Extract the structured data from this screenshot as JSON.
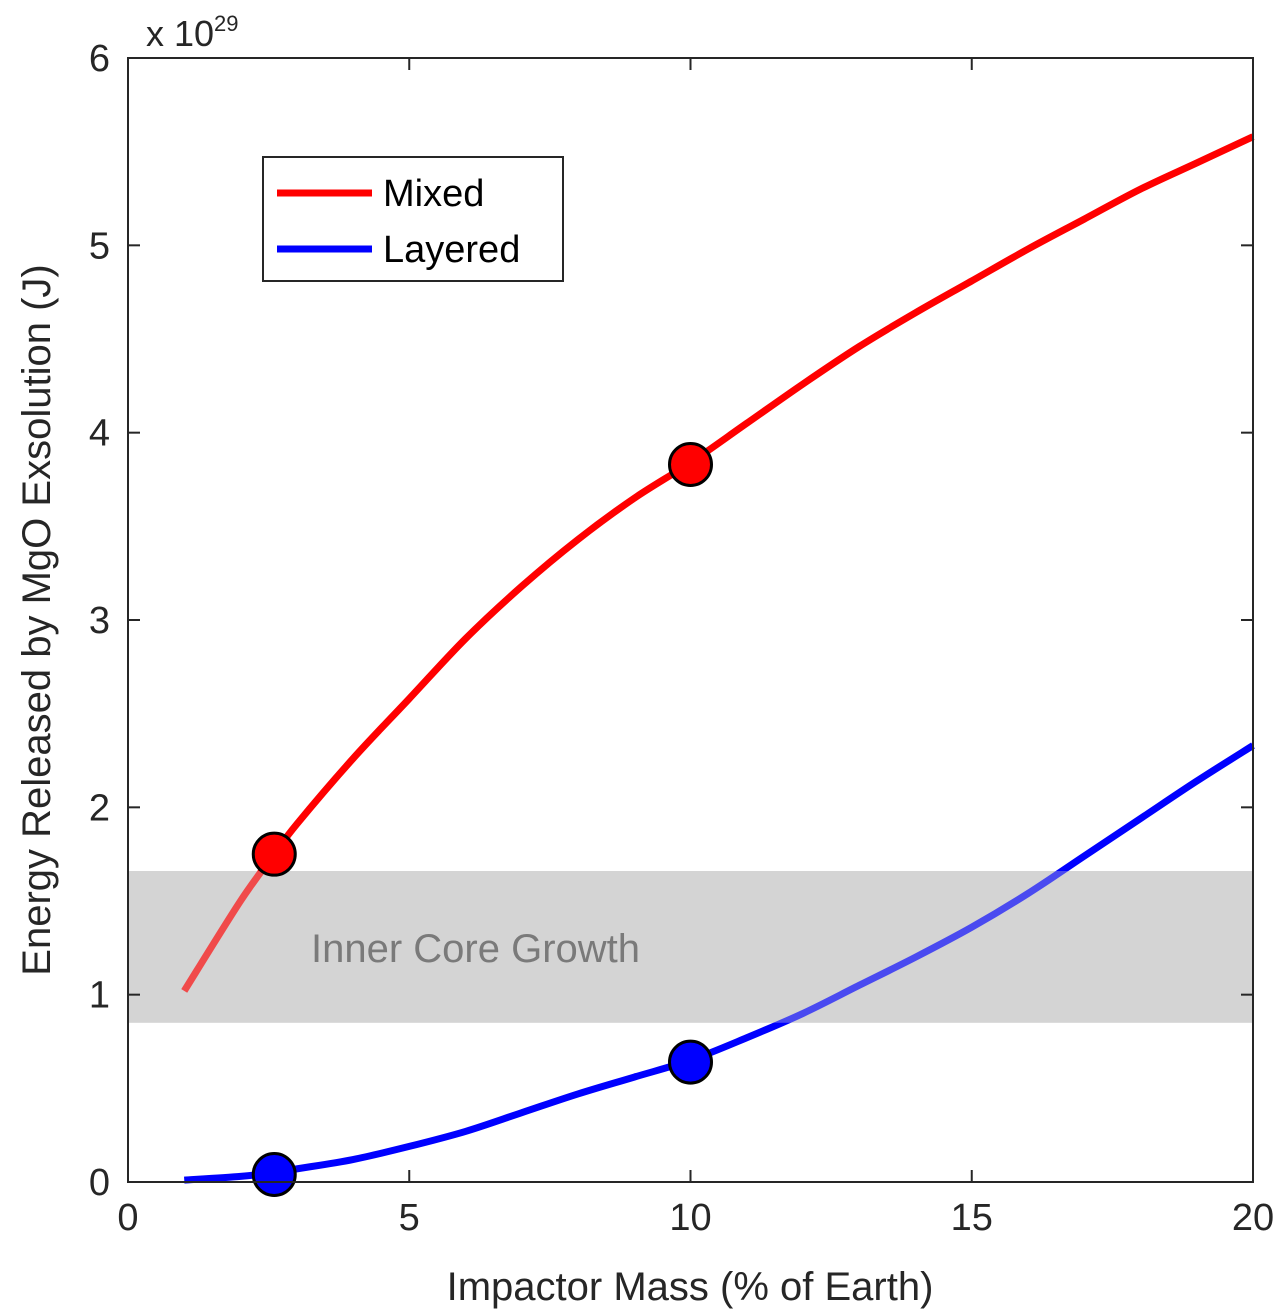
{
  "chart_data": {
    "type": "line",
    "xlabel": "Impactor Mass (% of Earth)",
    "ylabel": "Energy Released by MgO Exsolution (J)",
    "xlim": [
      0,
      20
    ],
    "ylim": [
      0,
      6
    ],
    "xticks": [
      0,
      5,
      10,
      15,
      20
    ],
    "yticks": [
      0,
      1,
      2,
      3,
      4,
      5,
      6
    ],
    "y_exponent_label": {
      "base": "x 10",
      "power": "29"
    },
    "grid": false,
    "legend_position": "top-left",
    "series": [
      {
        "name": "Mixed",
        "color": "#ff0000",
        "x": [
          1,
          2,
          2.6,
          3,
          4,
          5,
          6,
          7,
          8,
          9,
          10,
          11,
          12,
          13,
          14,
          15,
          16,
          17,
          18,
          19,
          20
        ],
        "y": [
          1.02,
          1.5,
          1.75,
          1.91,
          2.26,
          2.58,
          2.9,
          3.18,
          3.43,
          3.65,
          3.84,
          4.05,
          4.26,
          4.46,
          4.64,
          4.81,
          4.98,
          5.14,
          5.3,
          5.44,
          5.58
        ],
        "markers": [
          {
            "x": 2.6,
            "y": 1.75
          },
          {
            "x": 10,
            "y": 3.83
          }
        ]
      },
      {
        "name": "Layered",
        "color": "#0000ff",
        "x": [
          1,
          2,
          2.6,
          3,
          4,
          5,
          6,
          7,
          8,
          9,
          10,
          11,
          12,
          13,
          14,
          15,
          16,
          17,
          18,
          19,
          20
        ],
        "y": [
          0.01,
          0.03,
          0.05,
          0.07,
          0.12,
          0.19,
          0.27,
          0.37,
          0.47,
          0.56,
          0.65,
          0.77,
          0.9,
          1.05,
          1.2,
          1.36,
          1.54,
          1.74,
          1.94,
          2.14,
          2.33
        ],
        "markers": [
          {
            "x": 2.6,
            "y": 0.04
          },
          {
            "x": 10,
            "y": 0.64
          }
        ]
      }
    ],
    "band": {
      "label": "Inner Core Growth",
      "ymin": 0.85,
      "ymax": 1.66,
      "color": "#d4d4d4"
    }
  }
}
